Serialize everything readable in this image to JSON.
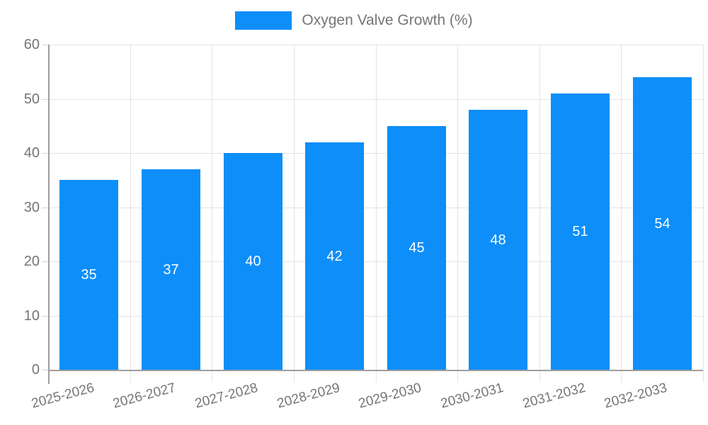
{
  "legend": {
    "label": "Oxygen Valve Growth (%)"
  },
  "colors": {
    "bar": "#0d8ef9",
    "axis": "#9e9e9e",
    "gridline": "#e3e3e3",
    "tick": "#d6d6d6",
    "text": "#757575",
    "bar_label_text": "#ffffff"
  },
  "chart_data": {
    "type": "bar",
    "title": "",
    "categories": [
      "2025-2026",
      "2026-2027",
      "2027-2028",
      "2028-2029",
      "2029-2030",
      "2030-2031",
      "2031-2032",
      "2032-2033"
    ],
    "series": [
      {
        "name": "Oxygen Valve Growth (%)",
        "values": [
          35,
          37,
          40,
          42,
          45,
          48,
          51,
          54
        ]
      }
    ],
    "data_labels": [
      "35",
      "37",
      "40",
      "42",
      "45",
      "48",
      "51",
      "54"
    ],
    "xlabel": "",
    "ylabel": "",
    "ylim": [
      0,
      60
    ],
    "ytick_step": 10,
    "ytick_labels": [
      "0",
      "10",
      "20",
      "30",
      "40",
      "50",
      "60"
    ],
    "grid": "on",
    "legend_position": "top",
    "bar_label_position": "center-inside",
    "xtick_label_rotation_deg": -15
  }
}
